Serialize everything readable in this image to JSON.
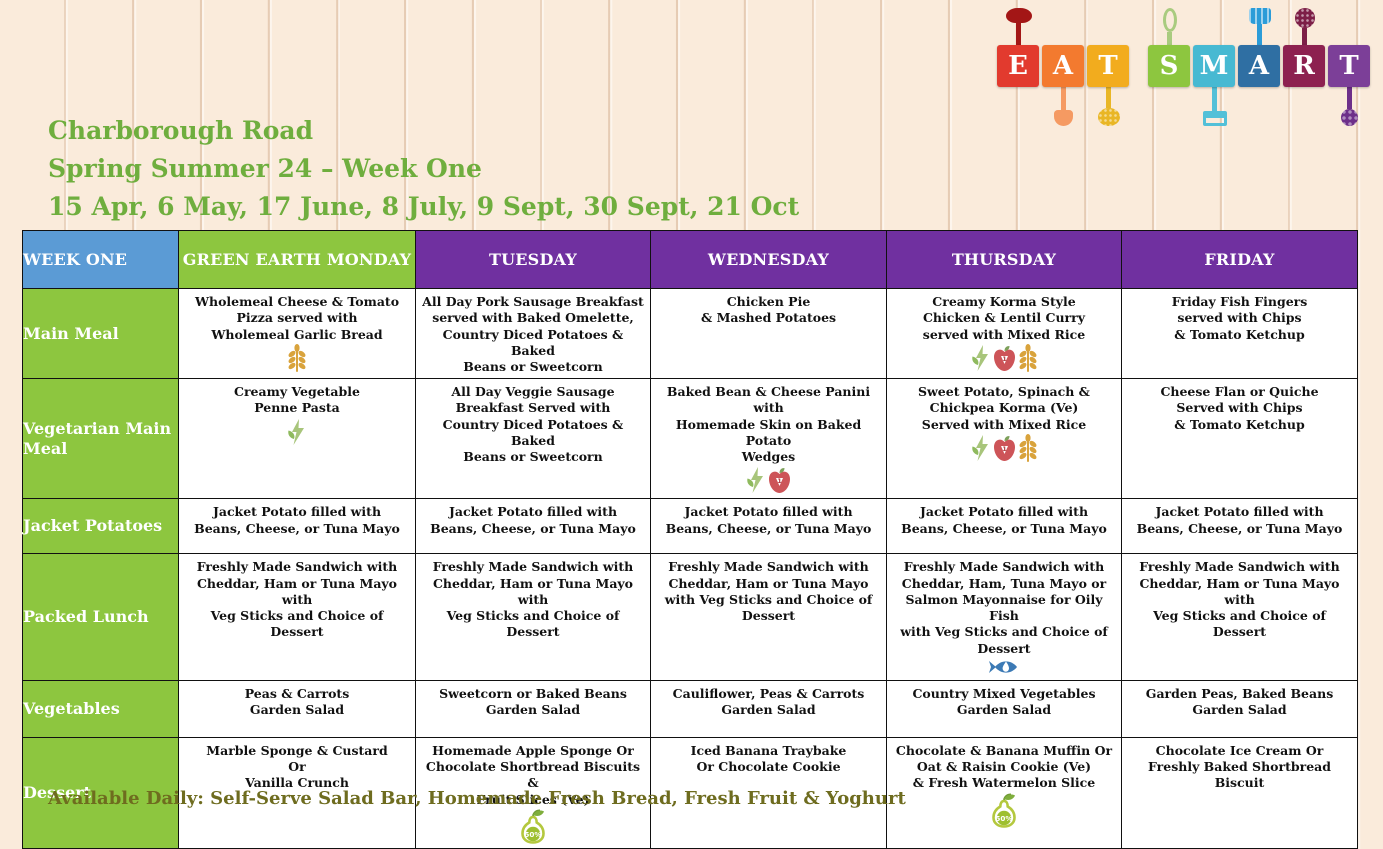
{
  "page": {
    "title_lines": [
      "Charborough Road",
      "Spring Summer 24 – Week One",
      "15 Apr, 6 May, 17 June, 8 July, 9 Sept, 30 Sept, 21 Oct"
    ],
    "footer": "Available Daily: Self-Serve Salad Bar, Homemade Fresh Bread, Fresh Fruit & Yoghurt"
  },
  "colors": {
    "header_blue": "#5b9bd5",
    "green": "#8dc63f",
    "purple": "#7030a0",
    "title_green": "#6fae3e",
    "footer_olive": "#6e6c1f"
  },
  "icons": {
    "pear_label": "50%"
  },
  "logo": {
    "text": "EAT SMART",
    "letters": [
      {
        "char": "E",
        "tile": "#e23a2e",
        "utensil": "ladle-icon",
        "side": "top",
        "ucolor": "#a31616"
      },
      {
        "char": "A",
        "tile": "#f37a2f",
        "utensil": "spatula-icon",
        "side": "bottom",
        "ucolor": "#f59a62"
      },
      {
        "char": "T",
        "tile": "#f2ac1e",
        "utensil": "slotted-spoon-icon",
        "side": "bottom",
        "ucolor": "#e9b625"
      },
      {
        "char": "S",
        "tile": "#8dc63f",
        "utensil": "whisk-icon",
        "side": "top",
        "ucolor": "#a9cb7f",
        "gap_before": true
      },
      {
        "char": "M",
        "tile": "#47b9d2",
        "utensil": "masher-icon",
        "side": "bottom",
        "ucolor": "#52c0d8"
      },
      {
        "char": "A",
        "tile": "#2f6fa3",
        "utensil": "turner-icon",
        "side": "top",
        "ucolor": "#2b9cd8"
      },
      {
        "char": "R",
        "tile": "#8d2150",
        "utensil": "skimmer-icon",
        "side": "top",
        "ucolor": "#7d1f47"
      },
      {
        "char": "T",
        "tile": "#7c3f98",
        "utensil": "pasta-fork-icon",
        "side": "bottom",
        "ucolor": "#6d2f8a"
      }
    ]
  },
  "menu": {
    "header": [
      "WEEK ONE",
      "GREEN EARTH MONDAY",
      "TUESDAY",
      "WEDNESDAY",
      "THURSDAY",
      "FRIDAY"
    ],
    "rows": [
      {
        "label": "Main Meal",
        "cells": [
          {
            "text": "Wholemeal Cheese & Tomato\nPizza served with\nWholemeal Garlic Bread",
            "icons": [
              "wholegrain-icon"
            ]
          },
          {
            "text": "All Day Pork Sausage Breakfast\nserved with Baked Omelette,\nCountry Diced Potatoes & Baked\nBeans or Sweetcorn",
            "icons": []
          },
          {
            "text": "Chicken Pie\n& Mashed Potatoes",
            "icons": []
          },
          {
            "text": "Creamy Korma Style\nChicken & Lentil Curry\nserved with Mixed Rice",
            "icons": [
              "veg-power-icon",
              "five-a-day-icon",
              "wholegrain-icon"
            ]
          },
          {
            "text": "Friday Fish Fingers\nserved with Chips\n& Tomato Ketchup",
            "icons": []
          }
        ]
      },
      {
        "label": "Vegetarian Main Meal",
        "cells": [
          {
            "text": "Creamy Vegetable\nPenne Pasta",
            "icons": [
              "veg-power-icon"
            ]
          },
          {
            "text": "All Day Veggie Sausage\nBreakfast Served with\nCountry Diced Potatoes & Baked\nBeans or Sweetcorn",
            "icons": []
          },
          {
            "text": "Baked Bean & Cheese Panini with\nHomemade Skin on Baked Potato\nWedges",
            "icons": [
              "veg-power-icon",
              "five-a-day-icon"
            ]
          },
          {
            "text": "Sweet Potato, Spinach &\nChickpea Korma (Ve)\nServed with Mixed Rice",
            "icons": [
              "veg-power-icon",
              "five-a-day-icon",
              "wholegrain-icon"
            ]
          },
          {
            "text": "Cheese Flan or Quiche\nServed with Chips\n& Tomato Ketchup",
            "icons": []
          }
        ]
      },
      {
        "label": "Jacket Potatoes",
        "cells": [
          {
            "text": "Jacket Potato filled with\nBeans, Cheese, or Tuna Mayo",
            "icons": []
          },
          {
            "text": "Jacket Potato filled with\nBeans, Cheese, or Tuna Mayo",
            "icons": []
          },
          {
            "text": "Jacket Potato filled with\nBeans, Cheese, or Tuna Mayo",
            "icons": []
          },
          {
            "text": "Jacket Potato filled with\nBeans, Cheese, or Tuna Mayo",
            "icons": []
          },
          {
            "text": "Jacket Potato filled with\nBeans, Cheese, or Tuna Mayo",
            "icons": []
          }
        ]
      },
      {
        "label": "Packed Lunch",
        "cells": [
          {
            "text": "Freshly Made Sandwich with\nCheddar, Ham or Tuna Mayo with\nVeg Sticks and Choice of Dessert",
            "icons": []
          },
          {
            "text": "Freshly Made Sandwich with\nCheddar, Ham or Tuna Mayo with\nVeg Sticks and Choice of Dessert",
            "icons": []
          },
          {
            "text": "Freshly Made Sandwich with\nCheddar, Ham or Tuna Mayo\nwith Veg Sticks and Choice of\nDessert",
            "icons": []
          },
          {
            "text": "Freshly Made Sandwich with\nCheddar, Ham, Tuna Mayo or\nSalmon Mayonnaise for Oily Fish\nwith Veg Sticks and Choice of\nDessert",
            "icons": [
              "oily-fish-icon"
            ]
          },
          {
            "text": "Freshly Made Sandwich with\nCheddar, Ham or Tuna Mayo with\nVeg Sticks and Choice of Dessert",
            "icons": []
          }
        ]
      },
      {
        "label": "Vegetables",
        "cells": [
          {
            "text": "Peas & Carrots\nGarden Salad",
            "icons": []
          },
          {
            "text": "Sweetcorn or Baked Beans\nGarden Salad",
            "icons": []
          },
          {
            "text": "Cauliflower, Peas & Carrots\nGarden Salad",
            "icons": []
          },
          {
            "text": "Country Mixed Vegetables\nGarden Salad",
            "icons": []
          },
          {
            "text": "Garden Peas, Baked Beans\nGarden Salad",
            "icons": []
          }
        ]
      },
      {
        "label": "Dessert",
        "cells": [
          {
            "text": "Marble Sponge & Custard\nOr\nVanilla Crunch",
            "icons": []
          },
          {
            "text": "Homemade Apple Sponge Or\nChocolate Shortbread Biscuits &\nFruit Slices (Ve)",
            "icons": [
              "pear-50-icon"
            ]
          },
          {
            "text": "Iced Banana Traybake\nOr Chocolate Cookie",
            "icons": []
          },
          {
            "text": "Chocolate & Banana Muffin Or\nOat & Raisin Cookie (Ve)\n& Fresh Watermelon Slice",
            "icons": [
              "pear-50-icon"
            ]
          },
          {
            "text": "Chocolate Ice Cream Or\nFreshly Baked Shortbread Biscuit",
            "icons": []
          }
        ]
      }
    ]
  }
}
